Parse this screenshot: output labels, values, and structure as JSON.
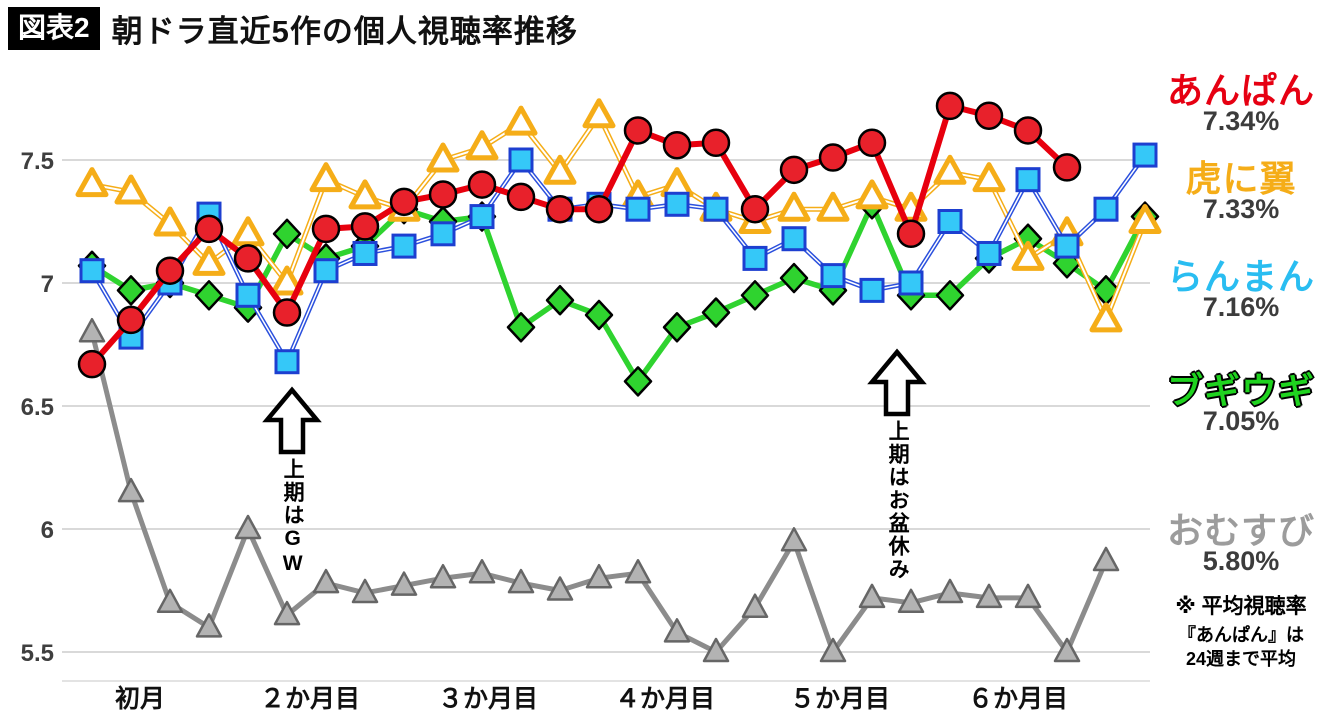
{
  "title": {
    "badge": "図表2",
    "text": "朝ドラ直近5作の個人視聴率推移"
  },
  "chart_data": {
    "type": "line",
    "title": "朝ドラ直近5作の個人視聴率推移",
    "xlabel": "",
    "ylabel": "",
    "ylim": [
      5.4,
      7.85
    ],
    "grid": true,
    "legend_position": "right",
    "x_ticks": [
      "初月",
      "２か月目",
      "３か月目",
      "４か月目",
      "５か月目",
      "６か月目"
    ],
    "yticks": [
      {
        "label": "7.5",
        "value": 7.5
      },
      {
        "label": "7",
        "value": 7.0
      },
      {
        "label": "6.5",
        "value": 6.5
      },
      {
        "label": "6",
        "value": 6.0
      },
      {
        "label": "5.5",
        "value": 5.5
      }
    ],
    "x_unit": "週",
    "series": [
      {
        "key": "anpan",
        "name": "あんぱん",
        "average_label": "7.34%",
        "marker": "circle",
        "line_color": "#e7000e",
        "marker_fill": "#e8212b",
        "marker_stroke": "#000000",
        "double_line": false,
        "values": [
          6.67,
          6.85,
          7.05,
          7.22,
          7.1,
          6.88,
          7.22,
          7.23,
          7.33,
          7.36,
          7.4,
          7.35,
          7.3,
          7.3,
          7.62,
          7.56,
          7.57,
          7.3,
          7.46,
          7.51,
          7.57,
          7.2,
          7.72,
          7.68,
          7.62,
          7.47
        ]
      },
      {
        "key": "tora-ni-tsubasa",
        "name": "虎に翼",
        "average_label": "7.33%",
        "marker": "triangle",
        "line_color": "#f5ad18",
        "marker_fill": "#ffffff",
        "marker_stroke": "#f5ad18",
        "double_line": true,
        "values": [
          7.4,
          7.37,
          7.24,
          7.08,
          7.2,
          7.0,
          7.42,
          7.35,
          7.3,
          7.5,
          7.55,
          7.65,
          7.45,
          7.68,
          7.35,
          7.4,
          7.3,
          7.25,
          7.3,
          7.3,
          7.35,
          7.3,
          7.45,
          7.42,
          7.1,
          7.2,
          6.85,
          7.25
        ]
      },
      {
        "key": "ranman",
        "name": "らんまん",
        "average_label": "7.16%",
        "marker": "square",
        "line_color": "#2b50dd",
        "marker_fill": "#35c8f8",
        "marker_stroke": "#1d3fd0",
        "double_line": true,
        "values": [
          7.05,
          6.78,
          7.0,
          7.28,
          6.95,
          6.68,
          7.05,
          7.12,
          7.15,
          7.2,
          7.27,
          7.5,
          7.3,
          7.32,
          7.3,
          7.32,
          7.3,
          7.1,
          7.18,
          7.03,
          6.97,
          7.0,
          7.25,
          7.12,
          7.42,
          7.15,
          7.3,
          7.52
        ]
      },
      {
        "key": "boogie-woogie",
        "name": "ブギウギ",
        "average_label": "7.05%",
        "marker": "diamond",
        "line_color": "#2fd32f",
        "marker_fill": "#2fd32f",
        "marker_stroke": "#000000",
        "double_line": false,
        "values": [
          7.07,
          6.97,
          7.0,
          6.95,
          6.9,
          7.2,
          7.1,
          7.15,
          7.3,
          7.25,
          7.27,
          6.82,
          6.93,
          6.87,
          6.6,
          6.82,
          6.88,
          6.95,
          7.02,
          6.97,
          7.32,
          6.95,
          6.95,
          7.1,
          7.18,
          7.08,
          6.97,
          7.27
        ]
      },
      {
        "key": "omusubi",
        "name": "おむすび",
        "average_label": "5.80%",
        "marker": "triangle",
        "line_color": "#8c8c8c",
        "marker_fill": "#b3b3b3",
        "marker_stroke": "#666666",
        "double_line": false,
        "values": [
          6.8,
          6.15,
          5.7,
          5.6,
          6.0,
          5.65,
          5.78,
          5.74,
          5.77,
          5.8,
          5.82,
          5.78,
          5.75,
          5.8,
          5.82,
          5.58,
          5.5,
          5.68,
          5.95,
          5.5,
          5.72,
          5.7,
          5.74,
          5.72,
          5.72,
          5.5,
          5.87
        ]
      }
    ],
    "annotations": [
      {
        "text": "上期はGW",
        "arrow": "up"
      },
      {
        "text": "上期はお盆休み",
        "arrow": "up"
      }
    ],
    "note": {
      "line1": "※ 平均視聴率",
      "line2": "『あんぱん』は",
      "line3": "24週まで平均"
    }
  }
}
